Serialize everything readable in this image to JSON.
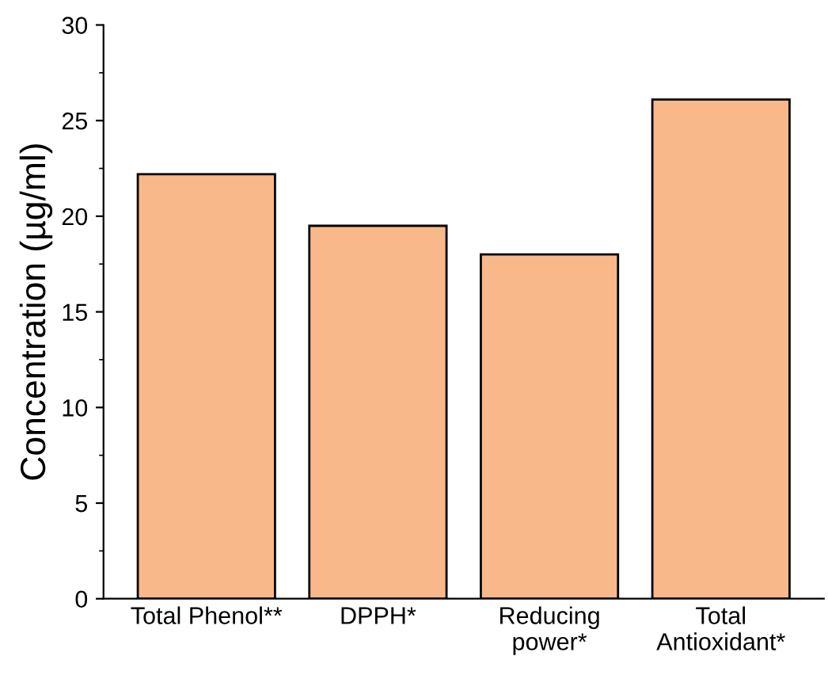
{
  "chart_data": {
    "type": "bar",
    "categories": [
      "Total Phenol**",
      "DPPH*",
      "Reducing\npower*",
      "Total\nAntioxidant*"
    ],
    "values": [
      22.2,
      19.5,
      18.0,
      26.1
    ],
    "color": "#f9b88a",
    "ylabel": "Concentration (µg/ml)",
    "ylim": [
      0,
      30
    ],
    "yticks": [
      0,
      5,
      10,
      15,
      20,
      25,
      30
    ],
    "grid": false
  }
}
